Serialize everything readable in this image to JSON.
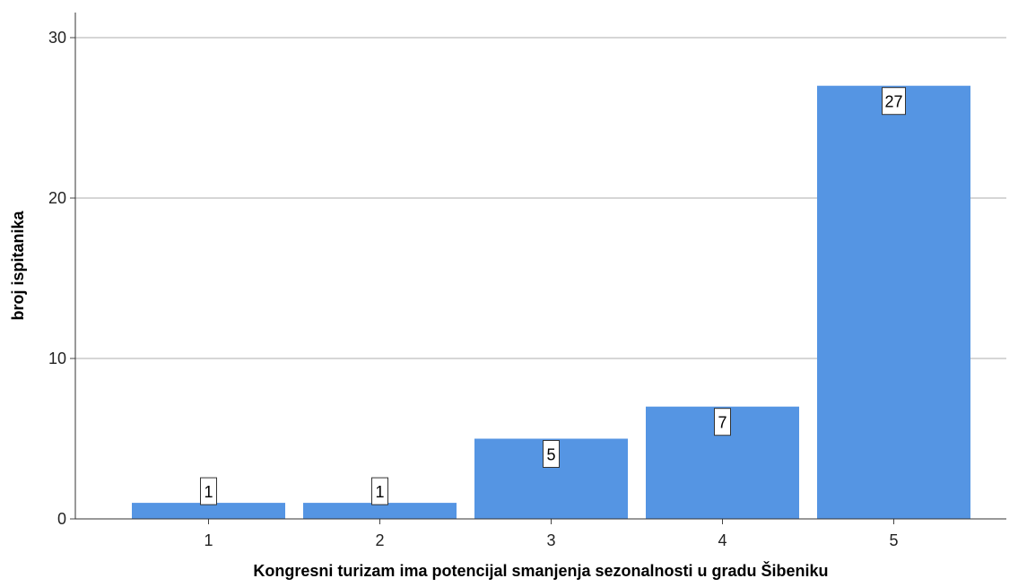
{
  "chart_data": {
    "type": "bar",
    "categories": [
      "1",
      "2",
      "3",
      "4",
      "5"
    ],
    "values": [
      1,
      1,
      5,
      7,
      27
    ],
    "data_labels": [
      "1",
      "1",
      "5",
      "7",
      "27"
    ],
    "title": "",
    "xlabel": "Kongresni turizam ima potencijal smanjenja sezonalnosti u gradu Šibeniku",
    "ylabel": "broj ispitanika",
    "ylim": [
      0,
      30
    ],
    "yticks": [
      "0",
      "10",
      "20",
      "30"
    ],
    "grid": true,
    "bar_color": "#5595e3",
    "grid_color": "#c8c8c8"
  }
}
